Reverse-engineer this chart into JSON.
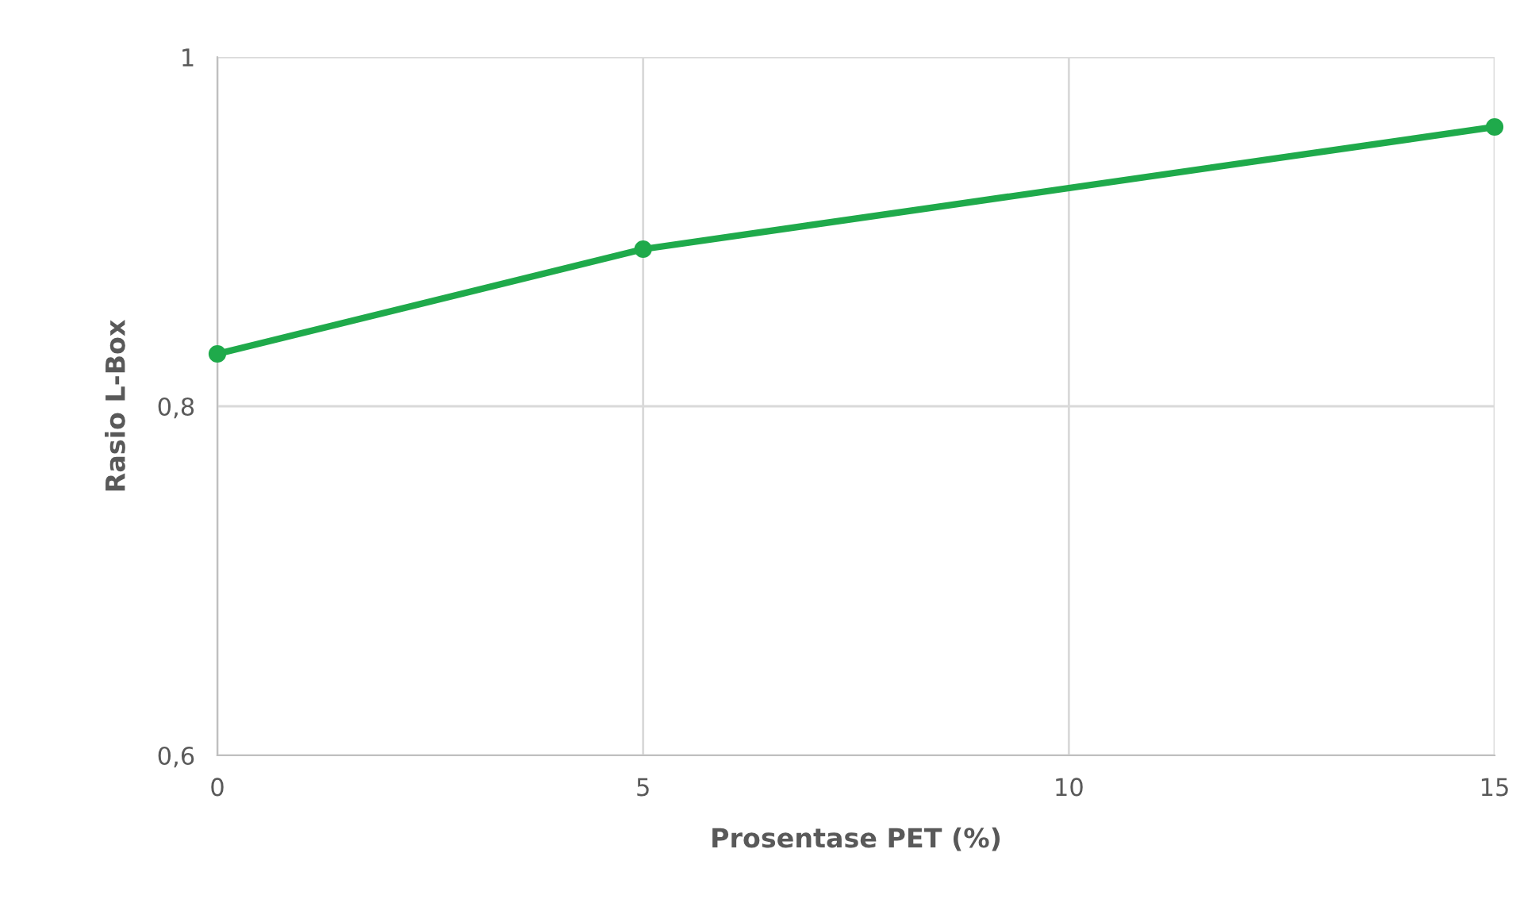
{
  "chart_data": {
    "type": "line",
    "xlabel": "Prosentase PET (%)",
    "ylabel": "Rasio L-Box",
    "x": [
      0,
      5,
      15
    ],
    "series": [
      {
        "color": "#1faa4b",
        "values": [
          0.83,
          0.89,
          0.96
        ]
      }
    ],
    "xlim": [
      0,
      15
    ],
    "xticks": [
      0,
      5,
      10,
      15
    ],
    "ylim": [
      0.6,
      1
    ],
    "yticks": [
      {
        "value": 0.6,
        "label": "0,6"
      },
      {
        "value": 0.8,
        "label": "0,8"
      },
      {
        "value": 1,
        "label": "1"
      }
    ],
    "grid": true,
    "marker": "circle",
    "line_style": "solid",
    "legend": false
  }
}
